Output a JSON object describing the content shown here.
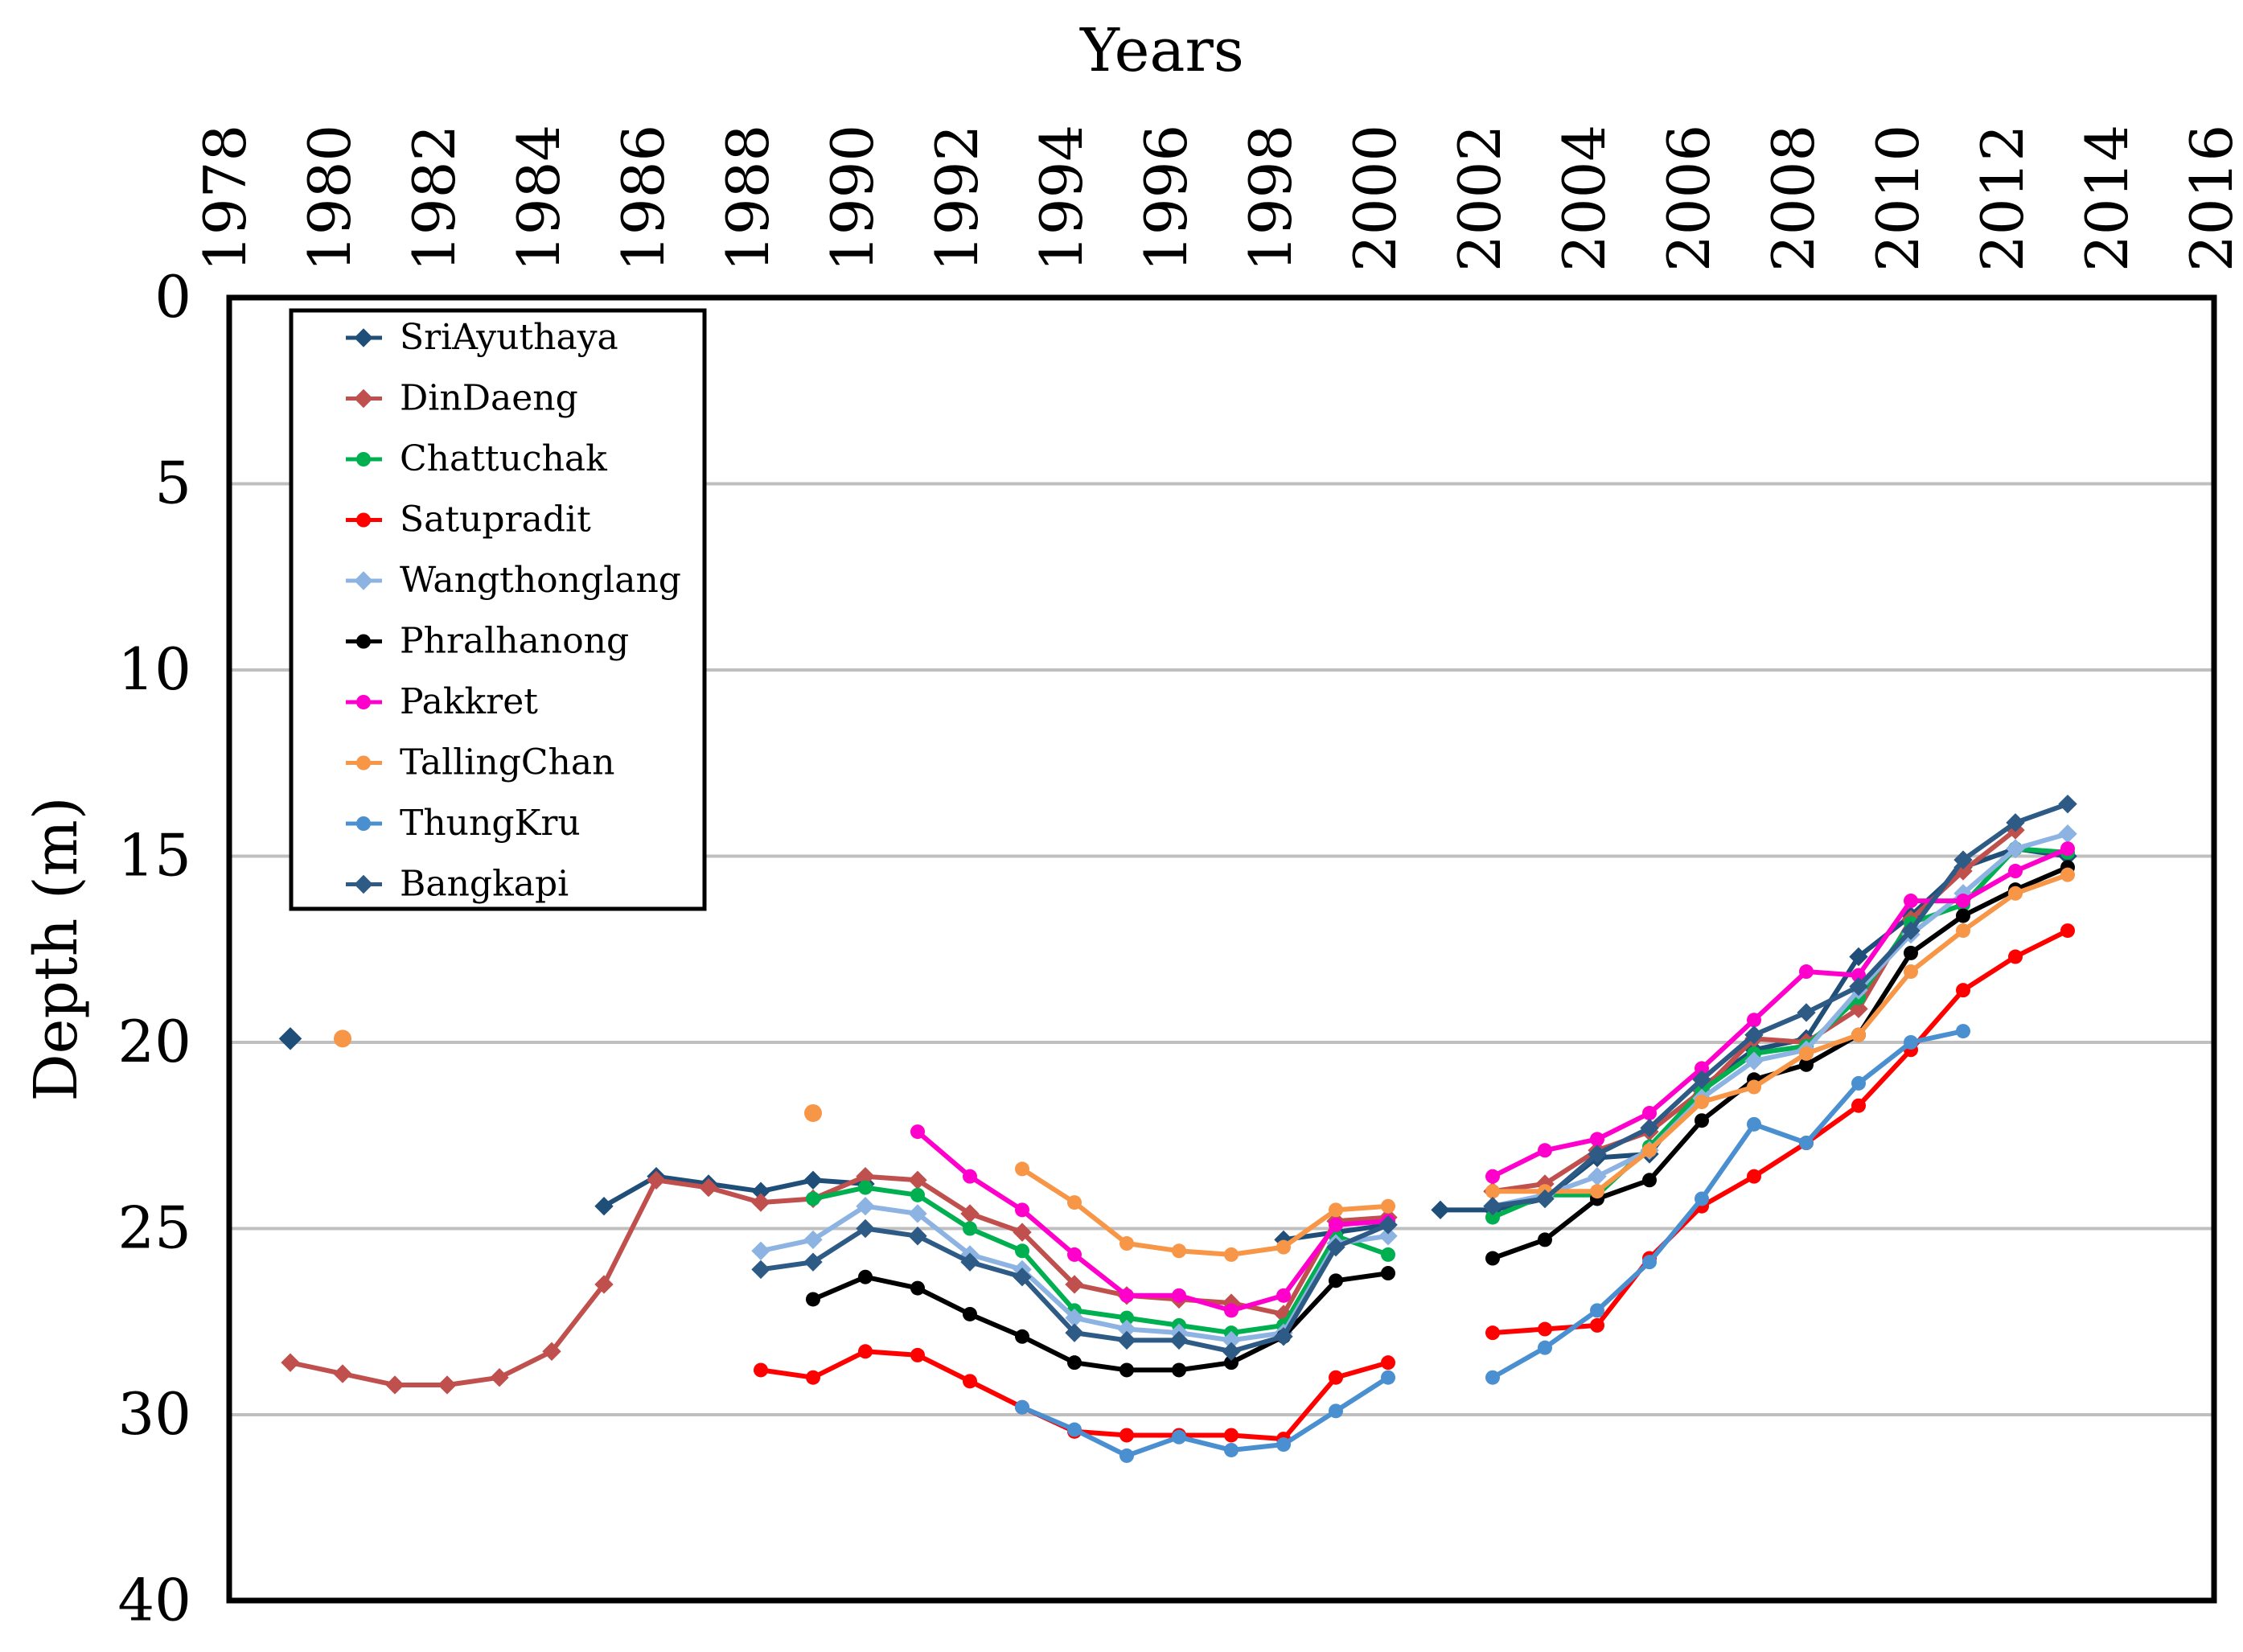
{
  "chart_data": {
    "type": "line",
    "title": "",
    "xlabel": "Years",
    "ylabel": "Depth (m)",
    "xlim": [
      1978,
      2016
    ],
    "ylim": [
      0,
      40
    ],
    "y_inverted": true,
    "y_scale": "piecewise",
    "y_scale_note": "0–30 evenly spaced in steps of 5; the 30–40 interval occupies one step",
    "x_ticks": [
      "1978",
      "1980",
      "1982",
      "1984",
      "1986",
      "1988",
      "1990",
      "1992",
      "1994",
      "1996",
      "1998",
      "2000",
      "2002",
      "2004",
      "2006",
      "2008",
      "2010",
      "2012",
      "2014",
      "2016"
    ],
    "y_ticks": [
      "0",
      "5",
      "10",
      "15",
      "20",
      "25",
      "30",
      "40"
    ],
    "grid": "horizontal",
    "legend_position": "top-left",
    "series": [
      {
        "name": "SriAyuthaya",
        "color": "#1f4e79",
        "marker": "diamond",
        "segments": [
          [
            [
              1985.2,
              24.4
            ],
            [
              1986.2,
              23.6
            ],
            [
              1987.2,
              23.8
            ],
            [
              1988.2,
              24.0
            ],
            [
              1989.2,
              23.7
            ],
            [
              1990.2,
              23.8
            ]
          ],
          [
            [
              1998.2,
              25.3
            ],
            [
              1999.2,
              25.1
            ],
            [
              2000.2,
              24.9
            ]
          ],
          [
            [
              2001.2,
              24.5
            ],
            [
              2002.2,
              24.5
            ],
            [
              2003.2,
              24.2
            ],
            [
              2004.2,
              23.1
            ],
            [
              2005.2,
              23.0
            ],
            [
              2006.2,
              21.2
            ],
            [
              2007.2,
              20.2
            ],
            [
              2008.2,
              19.9
            ],
            [
              2009.2,
              17.7
            ],
            [
              2010.2,
              16.6
            ],
            [
              2011.2,
              15.3
            ],
            [
              2012.2,
              14.8
            ],
            [
              2013.2,
              15.0
            ]
          ]
        ],
        "points": [
          [
            1979.2,
            19.9
          ]
        ]
      },
      {
        "name": "DinDaeng",
        "color": "#c0504d",
        "marker": "diamond",
        "segments": [
          [
            [
              1979.2,
              28.6
            ],
            [
              1980.2,
              28.9
            ],
            [
              1981.2,
              29.2
            ],
            [
              1982.2,
              29.2
            ],
            [
              1983.2,
              29.0
            ],
            [
              1984.2,
              28.3
            ],
            [
              1985.2,
              26.5
            ],
            [
              1986.2,
              23.7
            ],
            [
              1987.2,
              23.9
            ],
            [
              1988.2,
              24.3
            ],
            [
              1989.2,
              24.2
            ],
            [
              1990.2,
              23.6
            ],
            [
              1991.2,
              23.7
            ],
            [
              1992.2,
              24.6
            ],
            [
              1993.2,
              25.1
            ],
            [
              1994.2,
              26.5
            ],
            [
              1995.2,
              26.8
            ],
            [
              1996.2,
              26.9
            ],
            [
              1997.2,
              27.0
            ],
            [
              1998.2,
              27.3
            ],
            [
              1999.2,
              24.8
            ],
            [
              2000.2,
              24.7
            ]
          ],
          [
            [
              2002.2,
              24.0
            ],
            [
              2003.2,
              23.8
            ],
            [
              2004.2,
              22.9
            ],
            [
              2005.2,
              22.4
            ],
            [
              2006.2,
              21.3
            ],
            [
              2007.2,
              19.9
            ],
            [
              2008.2,
              20.0
            ],
            [
              2009.2,
              19.1
            ],
            [
              2010.2,
              16.7
            ],
            [
              2011.2,
              15.4
            ],
            [
              2012.2,
              14.3
            ]
          ]
        ]
      },
      {
        "name": "Chattuchak",
        "color": "#00b050",
        "marker": "circle",
        "segments": [
          [
            [
              1989.2,
              24.2
            ],
            [
              1990.2,
              23.9
            ],
            [
              1991.2,
              24.1
            ],
            [
              1992.2,
              25.0
            ],
            [
              1993.2,
              25.6
            ],
            [
              1994.2,
              27.2
            ],
            [
              1995.2,
              27.4
            ],
            [
              1996.2,
              27.6
            ],
            [
              1997.2,
              27.8
            ],
            [
              1998.2,
              27.6
            ],
            [
              1999.2,
              25.2
            ],
            [
              2000.2,
              25.7
            ]
          ],
          [
            [
              2002.2,
              24.7
            ],
            [
              2003.2,
              24.1
            ],
            [
              2004.2,
              24.1
            ],
            [
              2005.2,
              22.8
            ],
            [
              2006.2,
              21.3
            ],
            [
              2007.2,
              20.3
            ],
            [
              2008.2,
              20.1
            ],
            [
              2009.2,
              18.8
            ],
            [
              2010.2,
              16.8
            ],
            [
              2011.2,
              16.3
            ],
            [
              2012.2,
              14.8
            ],
            [
              2013.2,
              14.9
            ]
          ]
        ]
      },
      {
        "name": "Satupradit",
        "color": "#ff0000",
        "marker": "circle",
        "segments": [
          [
            [
              1988.2,
              28.8
            ],
            [
              1989.2,
              29.0
            ],
            [
              1990.2,
              28.3
            ],
            [
              1991.2,
              28.4
            ],
            [
              1992.2,
              29.1
            ],
            [
              1993.2,
              29.8
            ],
            [
              1994.2,
              30.9
            ],
            [
              1995.2,
              31.1
            ],
            [
              1996.2,
              31.1
            ],
            [
              1997.2,
              31.1
            ],
            [
              1998.2,
              31.3
            ],
            [
              1999.2,
              29.0
            ],
            [
              2000.2,
              28.6
            ]
          ],
          [
            [
              2002.2,
              27.8
            ],
            [
              2003.2,
              27.7
            ],
            [
              2004.2,
              27.6
            ],
            [
              2005.2,
              25.8
            ],
            [
              2006.2,
              24.4
            ],
            [
              2007.2,
              23.6
            ],
            [
              2008.2,
              22.7
            ],
            [
              2009.2,
              21.7
            ],
            [
              2010.2,
              20.2
            ],
            [
              2011.2,
              18.6
            ],
            [
              2012.2,
              17.7
            ],
            [
              2013.2,
              17.0
            ]
          ]
        ]
      },
      {
        "name": "Wangthonglang",
        "color": "#8db3e2",
        "marker": "diamond",
        "segments": [
          [
            [
              1988.2,
              25.6
            ],
            [
              1989.2,
              25.3
            ],
            [
              1990.2,
              24.4
            ],
            [
              1991.2,
              24.6
            ],
            [
              1992.2,
              25.7
            ],
            [
              1993.2,
              26.1
            ],
            [
              1994.2,
              27.4
            ],
            [
              1995.2,
              27.7
            ],
            [
              1996.2,
              27.8
            ],
            [
              1997.2,
              28.0
            ],
            [
              1998.2,
              27.8
            ],
            [
              1999.2,
              25.4
            ],
            [
              2000.2,
              25.2
            ]
          ],
          [
            [
              2002.2,
              24.4
            ],
            [
              2003.2,
              24.1
            ],
            [
              2004.2,
              23.6
            ],
            [
              2005.2,
              22.9
            ],
            [
              2006.2,
              21.5
            ],
            [
              2007.2,
              20.5
            ],
            [
              2008.2,
              20.2
            ],
            [
              2009.2,
              18.6
            ],
            [
              2010.2,
              17.1
            ],
            [
              2011.2,
              16.0
            ],
            [
              2012.2,
              14.8
            ],
            [
              2013.2,
              14.4
            ]
          ]
        ]
      },
      {
        "name": "Phralhanong",
        "color": "#000000",
        "marker": "circle",
        "segments": [
          [
            [
              1989.2,
              26.9
            ],
            [
              1990.2,
              26.3
            ],
            [
              1991.2,
              26.6
            ],
            [
              1992.2,
              27.3
            ],
            [
              1993.2,
              27.9
            ],
            [
              1994.2,
              28.6
            ],
            [
              1995.2,
              28.8
            ],
            [
              1996.2,
              28.8
            ],
            [
              1997.2,
              28.6
            ],
            [
              1998.2,
              27.9
            ],
            [
              1999.2,
              26.4
            ],
            [
              2000.2,
              26.2
            ]
          ],
          [
            [
              2002.2,
              25.8
            ],
            [
              2003.2,
              25.3
            ],
            [
              2004.2,
              24.2
            ],
            [
              2005.2,
              23.7
            ],
            [
              2006.2,
              22.1
            ],
            [
              2007.2,
              21.0
            ],
            [
              2008.2,
              20.6
            ],
            [
              2009.2,
              19.8
            ],
            [
              2010.2,
              17.6
            ],
            [
              2011.2,
              16.6
            ],
            [
              2012.2,
              15.9
            ],
            [
              2013.2,
              15.3
            ]
          ]
        ]
      },
      {
        "name": "Pakkret",
        "color": "#ff00cc",
        "marker": "circle",
        "segments": [
          [
            [
              1991.2,
              22.4
            ],
            [
              1992.2,
              23.6
            ],
            [
              1993.2,
              24.5
            ],
            [
              1994.2,
              25.7
            ],
            [
              1995.2,
              26.8
            ],
            [
              1996.2,
              26.8
            ],
            [
              1997.2,
              27.2
            ],
            [
              1998.2,
              26.8
            ],
            [
              1999.2,
              24.9
            ],
            [
              2000.2,
              24.8
            ]
          ],
          [
            [
              2002.2,
              23.6
            ],
            [
              2003.2,
              22.9
            ],
            [
              2004.2,
              22.6
            ],
            [
              2005.2,
              21.9
            ],
            [
              2006.2,
              20.7
            ],
            [
              2007.2,
              19.4
            ],
            [
              2008.2,
              18.1
            ],
            [
              2009.2,
              18.2
            ],
            [
              2010.2,
              16.2
            ],
            [
              2011.2,
              16.2
            ],
            [
              2012.2,
              15.4
            ],
            [
              2013.2,
              14.8
            ]
          ]
        ]
      },
      {
        "name": "TallingChan",
        "color": "#f79646",
        "marker": "circle",
        "segments": [
          [
            [
              1993.2,
              23.4
            ],
            [
              1994.2,
              24.3
            ],
            [
              1995.2,
              25.4
            ],
            [
              1996.2,
              25.6
            ],
            [
              1997.2,
              25.7
            ],
            [
              1998.2,
              25.5
            ],
            [
              1999.2,
              24.5
            ],
            [
              2000.2,
              24.4
            ]
          ],
          [
            [
              2002.2,
              24.0
            ],
            [
              2003.2,
              24.0
            ],
            [
              2004.2,
              24.0
            ],
            [
              2005.2,
              22.9
            ],
            [
              2006.2,
              21.6
            ],
            [
              2007.2,
              21.2
            ],
            [
              2008.2,
              20.3
            ],
            [
              2009.2,
              19.8
            ],
            [
              2010.2,
              18.1
            ],
            [
              2011.2,
              17.0
            ],
            [
              2012.2,
              16.0
            ],
            [
              2013.2,
              15.5
            ]
          ]
        ],
        "points": [
          [
            1980.2,
            19.9
          ],
          [
            1989.2,
            21.9
          ]
        ]
      },
      {
        "name": "ThungKru",
        "color": "#4a8fd0",
        "marker": "circle",
        "segments": [
          [
            [
              1993.2,
              29.8
            ],
            [
              1994.2,
              30.8
            ],
            [
              1995.2,
              32.2
            ],
            [
              1996.2,
              31.2
            ],
            [
              1997.2,
              31.9
            ],
            [
              1998.2,
              31.6
            ],
            [
              1999.2,
              29.9
            ],
            [
              2000.2,
              29.0
            ]
          ],
          [
            [
              2002.2,
              29.0
            ],
            [
              2003.2,
              28.2
            ],
            [
              2004.2,
              27.2
            ],
            [
              2005.2,
              25.9
            ],
            [
              2006.2,
              24.2
            ],
            [
              2007.2,
              22.2
            ],
            [
              2008.2,
              22.7
            ],
            [
              2009.2,
              21.1
            ],
            [
              2010.2,
              20.0
            ],
            [
              2011.2,
              19.7
            ]
          ]
        ]
      },
      {
        "name": "Bangkapi",
        "color": "#2e5a86",
        "marker": "diamond",
        "segments": [
          [
            [
              1988.2,
              26.1
            ],
            [
              1989.2,
              25.9
            ],
            [
              1990.2,
              25.0
            ],
            [
              1991.2,
              25.2
            ],
            [
              1992.2,
              25.9
            ],
            [
              1993.2,
              26.3
            ],
            [
              1994.2,
              27.8
            ],
            [
              1995.2,
              28.0
            ],
            [
              1996.2,
              28.0
            ],
            [
              1997.2,
              28.3
            ],
            [
              1998.2,
              27.9
            ],
            [
              1999.2,
              25.5
            ],
            [
              2000.2,
              24.9
            ]
          ],
          [
            [
              2002.2,
              24.4
            ],
            [
              2003.2,
              24.2
            ],
            [
              2004.2,
              23.0
            ],
            [
              2005.2,
              22.3
            ],
            [
              2006.2,
              21.0
            ],
            [
              2007.2,
              19.8
            ],
            [
              2008.2,
              19.2
            ],
            [
              2009.2,
              18.5
            ],
            [
              2010.2,
              17.0
            ],
            [
              2011.2,
              15.1
            ],
            [
              2012.2,
              14.1
            ],
            [
              2013.2,
              13.6
            ]
          ]
        ]
      }
    ]
  }
}
